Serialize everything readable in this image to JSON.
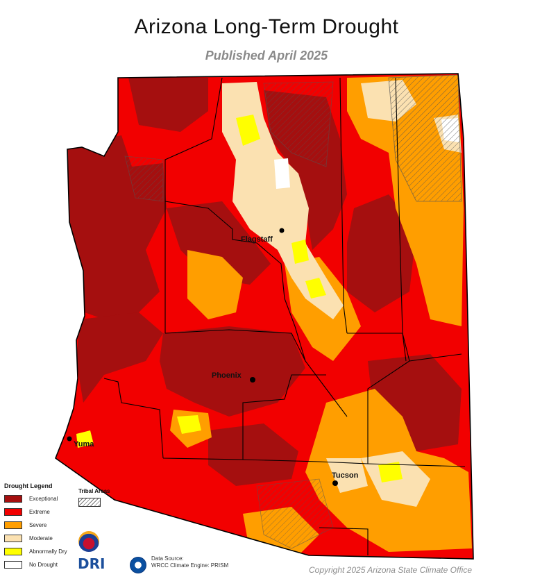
{
  "header": {
    "title": "Arizona Long-Term Drought",
    "subtitle": "Published April 2025"
  },
  "colors": {
    "exceptional": "#a50f0f",
    "extreme": "#f20000",
    "severe": "#ff9e00",
    "moderate": "#fbe1b1",
    "abnormally_dry": "#ffff00",
    "no_drought": "#ffffff",
    "boundary": "#000000"
  },
  "cities": [
    {
      "name": "Flagstaff"
    },
    {
      "name": "Phoenix"
    },
    {
      "name": "Yuma"
    },
    {
      "name": "Tucson"
    }
  ],
  "legend": {
    "title": "Drought Legend",
    "items": [
      {
        "label": "Exceptional",
        "color": "#a50f0f"
      },
      {
        "label": "Extreme",
        "color": "#f20000"
      },
      {
        "label": "Severe",
        "color": "#ff9e00"
      },
      {
        "label": "Moderate",
        "color": "#fbe1b1"
      },
      {
        "label": "Abnormally Dry",
        "color": "#ffff00"
      },
      {
        "label": "No Drought",
        "color": "#ffffff"
      }
    ]
  },
  "tribal": {
    "label": "Tribal Areas"
  },
  "logos": {
    "dri": "DRI"
  },
  "source": {
    "line1": "Data Source:",
    "line2": "WRCC Climate Engine: PRISM"
  },
  "footer": {
    "copyright": "Copyright 2025 Arizona State Climate Office"
  }
}
